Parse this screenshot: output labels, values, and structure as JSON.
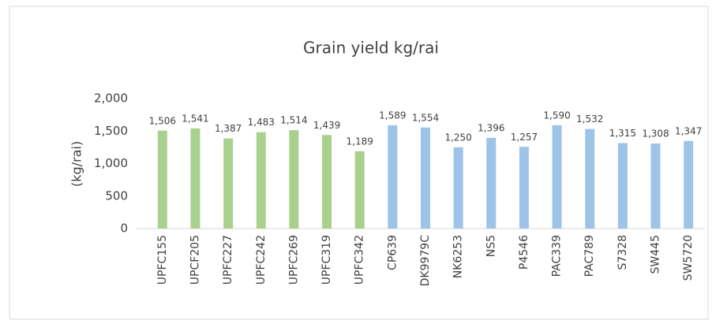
{
  "chart_data": {
    "type": "bar",
    "title": "Grain yield kg/rai",
    "y_label": "(kg/rai)",
    "categories": [
      "UPFC155",
      "UPCF205",
      "UPFC227",
      "UPFC242",
      "UPFC269",
      "UPFC319",
      "UPFC342",
      "CP639",
      "DK9979C",
      "NK6253",
      "NS5",
      "P4546",
      "PAC339",
      "PAC789",
      "S7328",
      "SW445",
      "SW5720"
    ],
    "values": [
      1506,
      1541,
      1387,
      1483,
      1514,
      1439,
      1189,
      1589,
      1554,
      1250,
      1396,
      1257,
      1590,
      1532,
      1315,
      1308,
      1347
    ],
    "value_labels": [
      "1,506",
      "1,541",
      "1,387",
      "1,483",
      "1,514",
      "1,439",
      "1,189",
      "1,589",
      "1,554",
      "1,250",
      "1,396",
      "1,257",
      "1,590",
      "1,532",
      "1,315",
      "1,308",
      "1,347"
    ],
    "colors": [
      "#a9d18e",
      "#a9d18e",
      "#a9d18e",
      "#a9d18e",
      "#a9d18e",
      "#a9d18e",
      "#a9d18e",
      "#9dc3e6",
      "#9dc3e6",
      "#9dc3e6",
      "#9dc3e6",
      "#9dc3e6",
      "#9dc3e6",
      "#9dc3e6",
      "#9dc3e6",
      "#9dc3e6",
      "#9dc3e6"
    ],
    "ylim": [
      0,
      2000
    ],
    "yticks": [
      0,
      500,
      {
        "value": 1000,
        "label": "1,000"
      },
      {
        "value": 1500,
        "label": "1,500"
      },
      {
        "value": 2000,
        "label": "2,000"
      }
    ],
    "grid": false
  }
}
